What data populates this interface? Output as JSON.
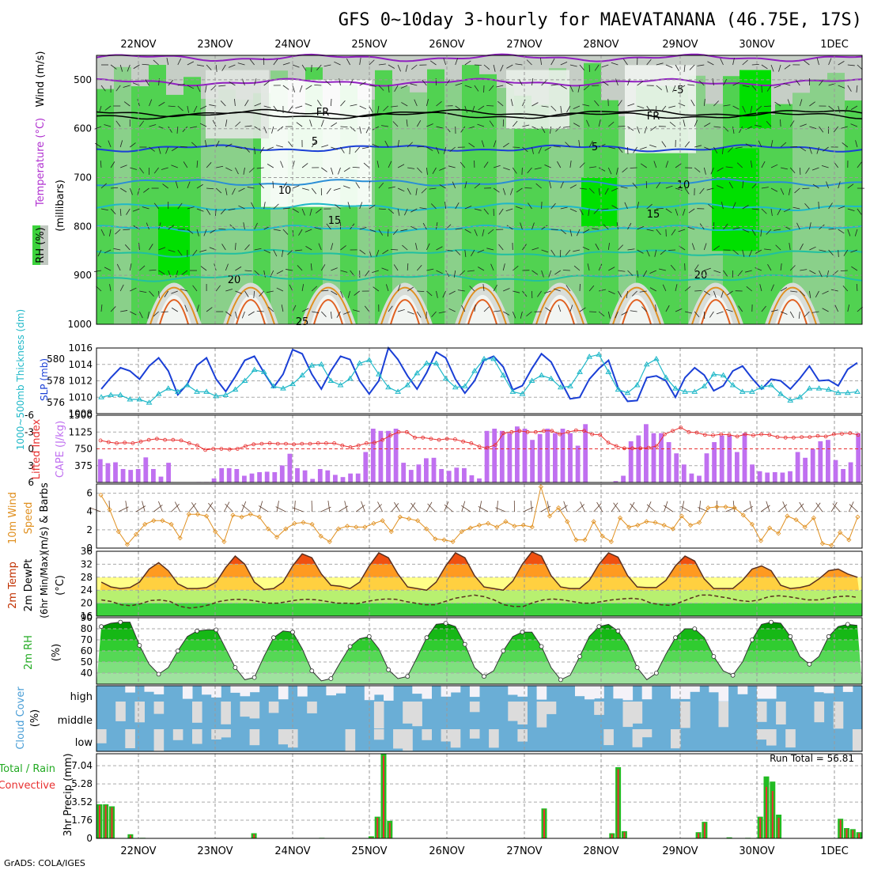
{
  "title": "GFS 0~10day 3-hourly for MAEVATANANA (46.75E, 17S)",
  "credit": "GrADS: COLA/IGES",
  "days": [
    "22NOV",
    "23NOV",
    "24NOV",
    "25NOV",
    "26NOV",
    "27NOV",
    "28NOV",
    "29NOV",
    "30NOV",
    "1DEC"
  ],
  "colors": {
    "green_rh": "#3cd23c",
    "bright_green": "#00e000",
    "gray_rh": "#c0c8c0",
    "slp_line": "#1a3fd6",
    "thickness_line": "#1fb8c8",
    "cape_bar": "#c070f0",
    "lifted_index": "#e83030",
    "wind_speed": "#e09020",
    "wind_barb": "#604030",
    "cloud_blue": "#6aaed6",
    "cloud_gray": "#dcdcdc",
    "precip_total": "#22bb22",
    "precip_conv": "#e83030"
  },
  "panels": {
    "upper_air": {
      "y_label": "(millibars)",
      "label_rh": "RH (%)",
      "label_temp": "Temperature (°C)",
      "label_wind": "Wind (m/s)",
      "yticks": [
        "500",
        "600",
        "700",
        "800",
        "900",
        "1000"
      ],
      "contour_labels": [
        "-5",
        "FR",
        "FR",
        "5",
        "5",
        "10",
        "10",
        "15",
        "15",
        "20",
        "20",
        "25"
      ]
    },
    "slp": {
      "label_thick": "1000~500mb Thickness (dm)",
      "label_slp": "SLP (mb)",
      "left_ticks": [
        "580",
        "578",
        "576"
      ],
      "right_ticks": [
        "1016",
        "1014",
        "1012",
        "1010",
        "1008"
      ]
    },
    "cape": {
      "label_li": "Lifted Index",
      "label_cape": "CAPE (J/kg)",
      "left_ticks": [
        "-6",
        "-3",
        "0",
        "3",
        "6"
      ],
      "right_ticks": [
        "1500",
        "1125",
        "750",
        "375"
      ]
    },
    "wind10": {
      "label": "10m Wind",
      "label_speed": "Speed",
      "label_barbs": "(m/s) & Barbs",
      "ticks": [
        "6",
        "4",
        "2",
        "0"
      ]
    },
    "temp2m": {
      "label_temp": "2m Temp",
      "label_dewpt": "2m DewPt",
      "label_minmax": "(6hr Min/Max)",
      "label_unit": "(°C)",
      "ticks": [
        "36",
        "32",
        "28",
        "24",
        "20",
        "16"
      ]
    },
    "rh2m": {
      "label": "2m RH",
      "label_unit": "(%)",
      "ticks": [
        "90",
        "80",
        "70",
        "60",
        "50",
        "40"
      ]
    },
    "cloud": {
      "label": "Cloud Cover",
      "label_unit": "(%)",
      "levels": [
        "high",
        "middle",
        "low"
      ]
    },
    "precip": {
      "label_total": "Total / Rain",
      "label_conv": "Convective",
      "label_y": "3hr Precip (mm)",
      "run_total": "Run Total = 56.81",
      "ticks": [
        "7.04",
        "5.28",
        "3.52",
        "1.76",
        "0"
      ]
    }
  },
  "chart_data": [
    {
      "type": "line",
      "title": "SLP (mb)",
      "ylim": [
        1008,
        1016
      ],
      "series": [
        {
          "name": "SLP",
          "values": [
            1011,
            1012.4,
            1013.6,
            1013.2,
            1012.2,
            1013.8,
            1014.8,
            1013.2,
            1010.3,
            1011.6,
            1013.9,
            1014.8,
            1012.2,
            1010.7,
            1012.5,
            1014.5,
            1015,
            1013,
            1011.2,
            1012.8,
            1015.8,
            1015.3,
            1012.8,
            1011,
            1013.2,
            1015,
            1014.6,
            1012,
            1010.4,
            1012,
            1016,
            1014.6,
            1012.6,
            1011,
            1013,
            1015.5,
            1014.8,
            1012.2,
            1010.5,
            1012,
            1014.5,
            1015,
            1013.7,
            1010.9,
            1011.4,
            1013.5,
            1015.3,
            1014.3,
            1012,
            1009.8,
            1010,
            1012.2,
            1013.5,
            1014.5,
            1011.2,
            1009.5,
            1009.6,
            1012.4,
            1012.6,
            1012,
            1010,
            1012.4,
            1013.6,
            1012.7,
            1010.8,
            1011.4,
            1013.2,
            1013.8,
            1012.3,
            1011,
            1012.2,
            1012,
            1011,
            1012.3,
            1013.8,
            1012,
            1012.1,
            1011.4,
            1013.4,
            1014.2
          ]
        }
      ]
    },
    {
      "type": "line",
      "title": "1000~500mb Thickness (dm)",
      "ylim": [
        575,
        581
      ],
      "series": [
        {
          "name": "Thickness",
          "values": [
            576.5,
            576.7,
            576.7,
            576.3,
            576.3,
            576,
            576.8,
            577.3,
            577,
            577.6,
            577,
            577,
            576.6,
            576.7,
            577.2,
            578,
            579,
            578.8,
            577.5,
            577.3,
            577.7,
            578.5,
            579.4,
            579.5,
            578,
            577.6,
            578.2,
            579.6,
            579.9,
            578.6,
            577.4,
            577,
            577.6,
            578.7,
            579.6,
            579.6,
            578.2,
            577.4,
            577.5,
            578.9,
            580,
            580,
            578.5,
            577,
            576.8,
            578,
            578.5,
            578.2,
            577.4,
            577.5,
            578.8,
            580.2,
            580.4,
            578.8,
            577.2,
            576.9,
            577.6,
            579.5,
            580,
            578.3,
            577.3,
            577,
            577,
            577.5,
            578.6,
            578.5,
            577.6,
            577,
            577,
            577.4,
            577.6,
            576.8,
            576.2,
            576.5,
            577.3,
            577.3,
            577.2,
            576.9,
            576.9,
            577
          ]
        }
      ]
    },
    {
      "type": "bar",
      "title": "CAPE (J/kg)",
      "ylim": [
        0,
        1500
      ],
      "values": [
        520,
        430,
        450,
        300,
        280,
        300,
        560,
        300,
        130,
        440,
        0,
        0,
        0,
        10,
        10,
        90,
        320,
        320,
        300,
        150,
        200,
        230,
        240,
        230,
        380,
        640,
        320,
        270,
        80,
        300,
        270,
        170,
        120,
        200,
        200,
        680,
        1200,
        1150,
        1150,
        1200,
        440,
        280,
        400,
        540,
        550,
        300,
        260,
        330,
        320,
        160,
        90,
        1150,
        1200,
        1150,
        1100,
        1250,
        1200,
        950,
        1080,
        1200,
        1100,
        1200,
        1100,
        820,
        1300,
        0,
        0,
        0,
        30,
        150,
        920,
        1050,
        1300,
        1100,
        1100,
        900,
        650,
        400,
        200,
        150,
        650,
        900,
        1050,
        1050,
        680,
        1100,
        400,
        250,
        220,
        230,
        220,
        250,
        680,
        550,
        750,
        920,
        950,
        500,
        300,
        450,
        1100
      ]
    },
    {
      "type": "line",
      "title": "Lifted Index",
      "ylim": [
        6,
        -6
      ],
      "series": [
        {
          "name": "Lifted Index",
          "values": [
            -1.5,
            -1.2,
            -1,
            -1.1,
            -1,
            -1.3,
            -1.6,
            -1.8,
            -1.6,
            -1.6,
            -1.5,
            -1,
            -0.6,
            0.2,
            0,
            0,
            0.1,
            0,
            -0.5,
            -0.8,
            -0.9,
            -1,
            -0.9,
            -0.9,
            -0.8,
            -0.9,
            -0.9,
            -1,
            -1,
            -1,
            -0.6,
            -0.3,
            -0.6,
            -1,
            -1.1,
            -1.6,
            -2.4,
            -3,
            -3,
            -2,
            -2,
            -1.8,
            -1.6,
            -1.8,
            -1.7,
            -1.3,
            -1,
            -0.4,
            -0.2,
            -0.7,
            -2.8,
            -3,
            -3.2,
            -3,
            -3,
            -3.2,
            -3.2,
            -2.6,
            -3,
            -3.3,
            -3.2,
            -2.6,
            -2.5,
            -1.1,
            -0.5,
            -0.1,
            -0.1,
            -0.1,
            -0.2,
            -0.5,
            -2.6,
            -3.2,
            -3.8,
            -3,
            -2.9,
            -2.5,
            -2.4,
            -2.6,
            -2.5,
            -2.2,
            -2.6,
            -2.4,
            -2.6,
            -2.5,
            -2.1,
            -2,
            -2,
            -2.1,
            -2.1,
            -2.3,
            -2.2,
            -2.6,
            -2.7,
            -2.8,
            -2.5
          ]
        }
      ]
    },
    {
      "type": "line",
      "title": "10m Wind Speed (m/s)",
      "ylim": [
        0,
        7
      ],
      "series": [
        {
          "name": "Speed",
          "values": [
            5.8,
            4.2,
            1.8,
            0.4,
            1.5,
            2.6,
            3,
            3,
            2.6,
            1.1,
            3.7,
            3.7,
            3.5,
            1.8,
            0.7,
            3.6,
            3.4,
            3.7,
            3.4,
            2.1,
            1.2,
            2.1,
            2.7,
            2.8,
            2.6,
            1.3,
            0.7,
            2.1,
            2.4,
            2.3,
            2.3,
            2.7,
            3,
            1.8,
            3.4,
            3.2,
            3,
            2.1,
            1,
            0.9,
            0.7,
            1.8,
            2.2,
            2.5,
            2.7,
            2.3,
            2.9,
            2.4,
            2.5,
            2.3,
            6.7,
            3.5,
            4.4,
            2.9,
            0.9,
            0.9,
            2.9,
            1.3,
            0.7,
            3.3,
            2.3,
            2.5,
            2.9,
            2.8,
            2.5,
            2.1,
            3.5,
            2.5,
            2.8,
            4.4,
            4.5,
            4.5,
            4.4,
            3.6,
            2.6,
            0.8,
            2.2,
            1.6,
            3.5,
            3.1,
            2.3,
            3.3,
            0.5,
            0.3,
            1.7,
            0.9,
            3.4
          ]
        }
      ]
    },
    {
      "type": "area",
      "title": "2m Temp (°C)",
      "ylim": [
        16,
        36
      ],
      "series": [
        {
          "name": "2m Temp",
          "values": [
            26.5,
            25,
            24.5,
            24.8,
            26.5,
            30.5,
            32.5,
            30,
            26,
            24.5,
            24.5,
            24.8,
            26.5,
            31,
            34.5,
            32,
            26.5,
            24.2,
            24.5,
            26.5,
            31.5,
            35.2,
            34,
            29,
            25.5,
            25.2,
            24.5,
            26.5,
            31.5,
            35.5,
            34,
            29,
            25,
            24.5,
            24,
            26.5,
            31.5,
            35.5,
            34,
            28.5,
            25,
            24.5,
            24,
            26.8,
            32,
            35.8,
            34.5,
            28.5,
            25,
            24.5,
            24.5,
            27,
            32,
            35.5,
            34.2,
            28.5,
            25,
            24.8,
            24.8,
            27,
            31.5,
            34.5,
            33,
            27.5,
            24.5,
            24.5,
            24.5,
            27,
            30.5,
            31.5,
            30,
            25.5,
            24.5,
            24.8,
            25.5,
            27.5,
            30,
            30.5,
            29,
            28
          ]
        },
        {
          "name": "2m DewPt",
          "values": [
            21,
            20.5,
            19.5,
            19.2,
            19.8,
            20.8,
            21,
            20.5,
            19,
            18.5,
            18.8,
            19.5,
            20.5,
            21,
            21.2,
            21,
            20.5,
            20,
            20,
            20.5,
            21,
            21.2,
            21,
            20.5,
            20,
            20,
            19.8,
            20.5,
            21,
            21.3,
            21.2,
            20.5,
            20,
            19.5,
            19.5,
            20.5,
            21.5,
            22,
            22.5,
            22,
            21,
            19.5,
            19,
            19,
            20.2,
            21,
            21.3,
            21,
            20.5,
            20,
            20,
            20.5,
            21,
            21.3,
            21.5,
            21.2,
            20,
            19.5,
            19.3,
            20.3,
            21.5,
            22.5,
            22.5,
            22,
            21.5,
            20.8,
            20.5,
            21,
            22,
            22.3,
            22,
            21.5,
            21,
            21,
            21.5,
            22,
            22.2,
            21.8
          ]
        }
      ]
    },
    {
      "type": "area",
      "title": "2m RH (%)",
      "ylim": [
        30,
        90
      ],
      "series": [
        {
          "name": "2m RH",
          "values": [
            82,
            85,
            86,
            86,
            65,
            48,
            39,
            45,
            60,
            73,
            78,
            79,
            79,
            62,
            45,
            34,
            36,
            55,
            72,
            78,
            77,
            62,
            42,
            33,
            35,
            50,
            64,
            71,
            73,
            62,
            43,
            35,
            37,
            54,
            72,
            84,
            85,
            82,
            66,
            45,
            37,
            42,
            60,
            73,
            77,
            77,
            64,
            45,
            34,
            38,
            55,
            73,
            82,
            84,
            78,
            65,
            45,
            34,
            40,
            57,
            72,
            80,
            80,
            72,
            55,
            42,
            38,
            50,
            70,
            84,
            86,
            85,
            73,
            55,
            48,
            55,
            73,
            82,
            84,
            83
          ]
        }
      ]
    },
    {
      "type": "bar",
      "title": "3hr Precip (mm)",
      "ylim": [
        0,
        8.2
      ],
      "series": [
        {
          "name": "Total / Rain",
          "values": [
            3.3,
            3.3,
            3.1,
            0,
            0,
            0.4,
            0,
            0.05,
            0,
            0,
            0,
            0,
            0,
            0,
            0,
            0,
            0,
            0,
            0,
            0,
            0,
            0,
            0,
            0,
            0,
            0.5,
            0,
            0,
            0,
            0,
            0,
            0,
            0,
            0,
            0,
            0,
            0.05,
            0,
            0,
            0,
            0,
            0,
            0,
            0,
            0.2,
            2.1,
            8.2,
            1.7,
            0,
            0,
            0,
            0,
            0,
            0,
            0,
            0,
            0,
            0,
            0,
            0,
            0,
            0,
            0,
            0,
            0,
            0,
            0,
            0,
            0,
            0,
            0,
            0,
            2.9,
            0,
            0,
            0,
            0,
            0,
            0,
            0,
            0,
            0,
            0,
            0.5,
            6.9,
            0.7,
            0,
            0,
            0,
            0,
            0,
            0,
            0,
            0,
            0,
            0,
            0,
            0.6,
            1.6,
            0,
            0,
            0,
            0.1,
            0,
            0,
            0.05,
            0,
            2.1,
            6,
            5.5,
            2.3,
            0,
            0,
            0,
            0,
            0,
            0,
            0,
            0,
            0,
            1.9,
            1,
            0.9,
            0.6
          ]
        },
        {
          "name": "Convective",
          "values": [
            3.2,
            3.2,
            3,
            0,
            0,
            0.3,
            0,
            0,
            0,
            0,
            0,
            0,
            0,
            0,
            0,
            0,
            0,
            0,
            0,
            0,
            0,
            0,
            0,
            0,
            0,
            0.4,
            0,
            0,
            0,
            0,
            0,
            0,
            0,
            0,
            0,
            0,
            0,
            0,
            0,
            0,
            0,
            0,
            0,
            0,
            0.1,
            2,
            8,
            1.5,
            0,
            0,
            0,
            0,
            0,
            0,
            0,
            0,
            0,
            0,
            0,
            0,
            0,
            0,
            0,
            0,
            0,
            0,
            0,
            0,
            0,
            0,
            0,
            0,
            2.8,
            0,
            0,
            0,
            0,
            0,
            0,
            0,
            0,
            0,
            0,
            0.4,
            6.7,
            0.6,
            0,
            0,
            0,
            0,
            0,
            0,
            0,
            0,
            0,
            0,
            0,
            0.5,
            1.5,
            0,
            0,
            0,
            0,
            0,
            0,
            0,
            0,
            2,
            5,
            4.6,
            2,
            0,
            0,
            0,
            0,
            0,
            0,
            0,
            0,
            0,
            1.8,
            0.9,
            0.8,
            0.5
          ]
        }
      ]
    }
  ]
}
